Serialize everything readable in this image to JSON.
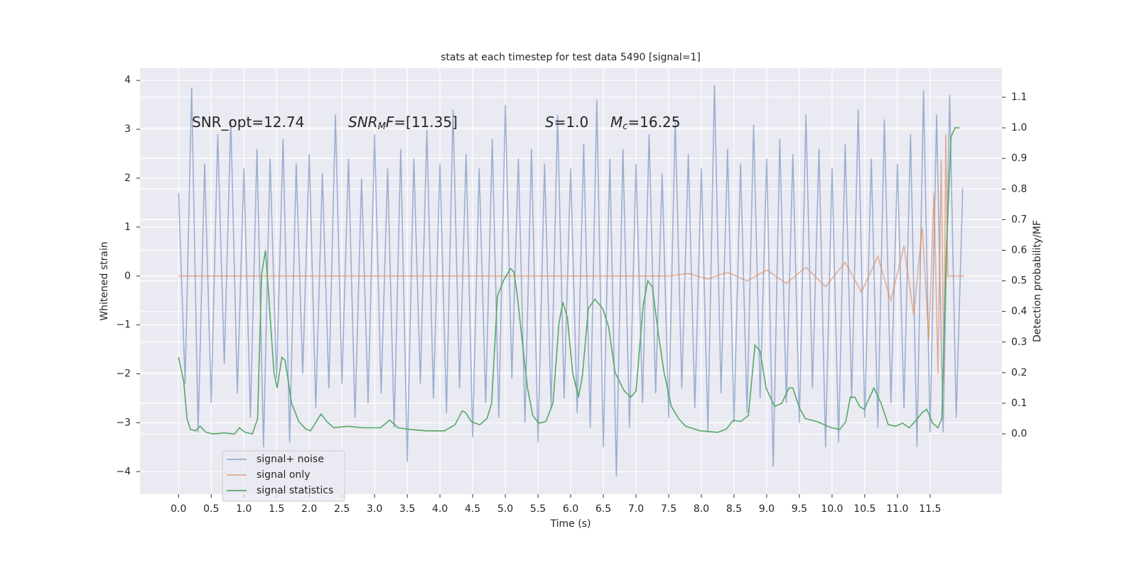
{
  "chart_data": {
    "type": "line",
    "title": "stats at each timestep for test data 5490 [signal=1]",
    "xlabel": "Time (s)",
    "ylabel": "Whitened strain",
    "y2label": "Detection probability/MF",
    "annotations": [
      [
        {
          "text": "SNR_opt=12.74"
        }
      ],
      [
        {
          "text": "SNR",
          "italic": true
        },
        {
          "text": "M",
          "italic": true,
          "sub": true
        },
        {
          "text": "F",
          "italic": true
        },
        {
          "text": "=[11.35]"
        }
      ],
      [
        {
          "text": "S",
          "italic": true
        },
        {
          "text": "=1.0"
        }
      ],
      [
        {
          "text": "M",
          "italic": true
        },
        {
          "text": "c",
          "italic": true,
          "sub": true
        },
        {
          "text": "=16.25"
        }
      ]
    ],
    "xlim": [
      -0.59,
      12.6
    ],
    "ylim": [
      -4.46,
      4.25
    ],
    "y2lim": [
      -0.197,
      1.195
    ],
    "xticks": [
      {
        "value": 0,
        "label": "0.0"
      },
      {
        "value": 0.5,
        "label": "0.5"
      },
      {
        "value": 1,
        "label": "1.0"
      },
      {
        "value": 1.5,
        "label": "1.5"
      },
      {
        "value": 2,
        "label": "2.0"
      },
      {
        "value": 2.5,
        "label": "2.5"
      },
      {
        "value": 3,
        "label": "3.0"
      },
      {
        "value": 3.5,
        "label": "3.5"
      },
      {
        "value": 4,
        "label": "4.0"
      },
      {
        "value": 4.5,
        "label": "4.5"
      },
      {
        "value": 5,
        "label": "5.0"
      },
      {
        "value": 5.5,
        "label": "5.5"
      },
      {
        "value": 6,
        "label": "6.0"
      },
      {
        "value": 6.5,
        "label": "6.5"
      },
      {
        "value": 7,
        "label": "7.0"
      },
      {
        "value": 7.5,
        "label": "7.5"
      },
      {
        "value": 8,
        "label": "8.0"
      },
      {
        "value": 8.5,
        "label": "8.5"
      },
      {
        "value": 9,
        "label": "9.0"
      },
      {
        "value": 9.5,
        "label": "9.5"
      },
      {
        "value": 10,
        "label": "10.0"
      },
      {
        "value": 10.5,
        "label": "10.5"
      },
      {
        "value": 11,
        "label": "11.0"
      },
      {
        "value": 11.5,
        "label": "11.5"
      }
    ],
    "yticks": [
      {
        "value": -4,
        "label": "−4"
      },
      {
        "value": -3,
        "label": "−3"
      },
      {
        "value": -2,
        "label": "−2"
      },
      {
        "value": -1,
        "label": "−1"
      },
      0,
      1,
      2,
      3,
      4
    ],
    "y2ticks": [
      {
        "value": 0,
        "label": "0.0"
      },
      {
        "value": 0.1,
        "label": "0.1"
      },
      {
        "value": 0.2,
        "label": "0.2"
      },
      {
        "value": 0.3,
        "label": "0.3"
      },
      {
        "value": 0.4,
        "label": "0.4"
      },
      {
        "value": 0.5,
        "label": "0.5"
      },
      {
        "value": 0.6,
        "label": "0.6"
      },
      {
        "value": 0.7,
        "label": "0.7"
      },
      {
        "value": 0.8,
        "label": "0.8"
      },
      {
        "value": 0.9,
        "label": "0.9"
      },
      {
        "value": 1,
        "label": "1.0"
      },
      {
        "value": 1.1,
        "label": "1.1"
      }
    ],
    "grid": true,
    "legend": "lower left",
    "series": [
      {
        "name": "signal+ noise",
        "color": "#4c72b0",
        "opacity": 0.5,
        "x": [
          0,
          0.1,
          0.2,
          0.3,
          0.4,
          0.5,
          0.6,
          0.7,
          0.8,
          0.9,
          1,
          1.1,
          1.2,
          1.3,
          1.4,
          1.5,
          1.6,
          1.7,
          1.8,
          1.9,
          2,
          2.1,
          2.2,
          2.3,
          2.4,
          2.5,
          2.6,
          2.7,
          2.8,
          2.9,
          3,
          3.1,
          3.2,
          3.3,
          3.4,
          3.5,
          3.6,
          3.7,
          3.8,
          3.9,
          4,
          4.1,
          4.2,
          4.3,
          4.4,
          4.5,
          4.6,
          4.7,
          4.8,
          4.9,
          5,
          5.1,
          5.2,
          5.3,
          5.4,
          5.5,
          5.6,
          5.7,
          5.8,
          5.9,
          6,
          6.1,
          6.2,
          6.3,
          6.4,
          6.5,
          6.6,
          6.7,
          6.8,
          6.9,
          7,
          7.1,
          7.2,
          7.3,
          7.4,
          7.5,
          7.6,
          7.7,
          7.8,
          7.9,
          8,
          8.1,
          8.2,
          8.3,
          8.4,
          8.5,
          8.6,
          8.7,
          8.8,
          8.9,
          9,
          9.1,
          9.2,
          9.3,
          9.4,
          9.5,
          9.6,
          9.7,
          9.8,
          9.9,
          10,
          10.1,
          10.2,
          10.3,
          10.4,
          10.5,
          10.6,
          10.7,
          10.8,
          10.9,
          11,
          11.1,
          11.2,
          11.3,
          11.4,
          11.5,
          11.6,
          11.7,
          11.8,
          11.9,
          12
        ],
        "values": [
          1.7,
          -2.2,
          3.85,
          -3.2,
          2.3,
          -2.6,
          2.9,
          -1.8,
          3.2,
          -2.4,
          2.2,
          -2.9,
          2.6,
          -3.5,
          2.4,
          -2.1,
          2.8,
          -3.4,
          2.3,
          -2.0,
          2.5,
          -2.7,
          2.1,
          -2.3,
          3.3,
          -2.2,
          2.4,
          -2.9,
          2.0,
          -2.6,
          2.9,
          -2.4,
          2.2,
          -3.1,
          2.6,
          -3.8,
          2.4,
          -2.2,
          3.0,
          -2.5,
          2.3,
          -2.8,
          3.4,
          -2.3,
          2.5,
          -3.3,
          2.2,
          -2.6,
          2.8,
          -2.9,
          3.5,
          -2.1,
          2.4,
          -3.0,
          2.6,
          -3.4,
          2.3,
          -2.7,
          3.3,
          -2.5,
          2.2,
          -2.8,
          2.7,
          -3.1,
          3.6,
          -3.5,
          2.4,
          -4.1,
          2.6,
          -3.1,
          2.3,
          -2.6,
          2.9,
          -2.4,
          2.1,
          -2.9,
          3.2,
          -2.3,
          2.5,
          -2.7,
          2.2,
          -3.2,
          3.9,
          -2.4,
          2.6,
          -3.0,
          2.3,
          -2.8,
          3.1,
          -2.5,
          2.4,
          -3.9,
          2.8,
          -2.6,
          2.5,
          -3.0,
          3.3,
          -2.3,
          2.6,
          -3.5,
          2.2,
          -3.4,
          2.7,
          -2.5,
          3.4,
          -2.9,
          2.4,
          -3.1,
          3.2,
          -2.6,
          2.3,
          -2.7,
          2.9,
          -3.5,
          3.8,
          -3.2,
          3.3,
          -3.2,
          3.7,
          -2.9,
          1.8
        ]
      },
      {
        "name": "signal only",
        "color": "#dd8452",
        "opacity": 0.6,
        "x": [
          0,
          7.5,
          7.8,
          8.1,
          8.4,
          8.7,
          9.0,
          9.3,
          9.6,
          9.9,
          10.2,
          10.45,
          10.7,
          10.9,
          11.1,
          11.25,
          11.38,
          11.48,
          11.56,
          11.62,
          11.67,
          11.71,
          11.74,
          11.77,
          12.02
        ],
        "values": [
          0,
          0,
          0.05,
          -0.06,
          0.08,
          -0.1,
          0.12,
          -0.15,
          0.18,
          -0.22,
          0.28,
          -0.33,
          0.4,
          -0.5,
          0.62,
          -0.8,
          1.0,
          -1.3,
          1.7,
          -2.0,
          2.4,
          -2.1,
          2.9,
          0,
          0
        ]
      },
      {
        "name": "signal statistics",
        "color": "#55a868",
        "opacity": 1,
        "axis": "y2",
        "x": [
          0,
          0.08,
          0.13,
          0.18,
          0.26,
          0.33,
          0.42,
          0.53,
          0.7,
          0.86,
          0.93,
          1.02,
          1.13,
          1.21,
          1.27,
          1.33,
          1.38,
          1.46,
          1.51,
          1.58,
          1.63,
          1.73,
          1.84,
          1.95,
          2.02,
          2.18,
          2.27,
          2.38,
          2.58,
          2.82,
          3.09,
          3.23,
          3.36,
          3.52,
          3.79,
          4.07,
          4.23,
          4.34,
          4.39,
          4.48,
          4.61,
          4.72,
          4.79,
          4.88,
          4.97,
          5.08,
          5.13,
          5.18,
          5.26,
          5.34,
          5.42,
          5.51,
          5.62,
          5.73,
          5.82,
          5.88,
          5.95,
          6.03,
          6.12,
          6.18,
          6.27,
          6.37,
          6.49,
          6.58,
          6.68,
          6.82,
          6.92,
          7.0,
          7.11,
          7.18,
          7.25,
          7.34,
          7.43,
          7.54,
          7.65,
          7.76,
          7.98,
          8.25,
          8.38,
          8.49,
          8.6,
          8.72,
          8.82,
          8.9,
          8.99,
          9.12,
          9.23,
          9.34,
          9.4,
          9.5,
          9.59,
          9.77,
          9.99,
          10.12,
          10.21,
          10.28,
          10.35,
          10.42,
          10.49,
          10.64,
          10.75,
          10.86,
          10.97,
          11.08,
          11.18,
          11.29,
          11.38,
          11.45,
          11.54,
          11.62,
          11.68,
          11.75,
          11.82,
          11.88,
          11.95
        ],
        "values": [
          0.25,
          0.17,
          0.05,
          0.015,
          0.01,
          0.025,
          0.005,
          0,
          0.003,
          0,
          0.02,
          0.005,
          0,
          0.05,
          0.52,
          0.6,
          0.45,
          0.2,
          0.15,
          0.25,
          0.24,
          0.1,
          0.04,
          0.015,
          0.01,
          0.065,
          0.04,
          0.02,
          0.025,
          0.02,
          0.02,
          0.045,
          0.02,
          0.015,
          0.01,
          0.01,
          0.03,
          0.075,
          0.07,
          0.04,
          0.03,
          0.05,
          0.1,
          0.45,
          0.5,
          0.54,
          0.53,
          0.46,
          0.3,
          0.15,
          0.06,
          0.035,
          0.04,
          0.1,
          0.36,
          0.43,
          0.38,
          0.2,
          0.12,
          0.19,
          0.41,
          0.44,
          0.41,
          0.35,
          0.2,
          0.14,
          0.12,
          0.14,
          0.42,
          0.5,
          0.48,
          0.33,
          0.2,
          0.09,
          0.05,
          0.025,
          0.01,
          0.005,
          0.015,
          0.045,
          0.04,
          0.06,
          0.29,
          0.27,
          0.15,
          0.09,
          0.1,
          0.15,
          0.15,
          0.085,
          0.05,
          0.04,
          0.02,
          0.015,
          0.04,
          0.12,
          0.12,
          0.09,
          0.08,
          0.15,
          0.1,
          0.03,
          0.025,
          0.035,
          0.02,
          0.045,
          0.07,
          0.08,
          0.035,
          0.02,
          0.05,
          0.6,
          0.97,
          1.0,
          1.0
        ]
      }
    ]
  }
}
